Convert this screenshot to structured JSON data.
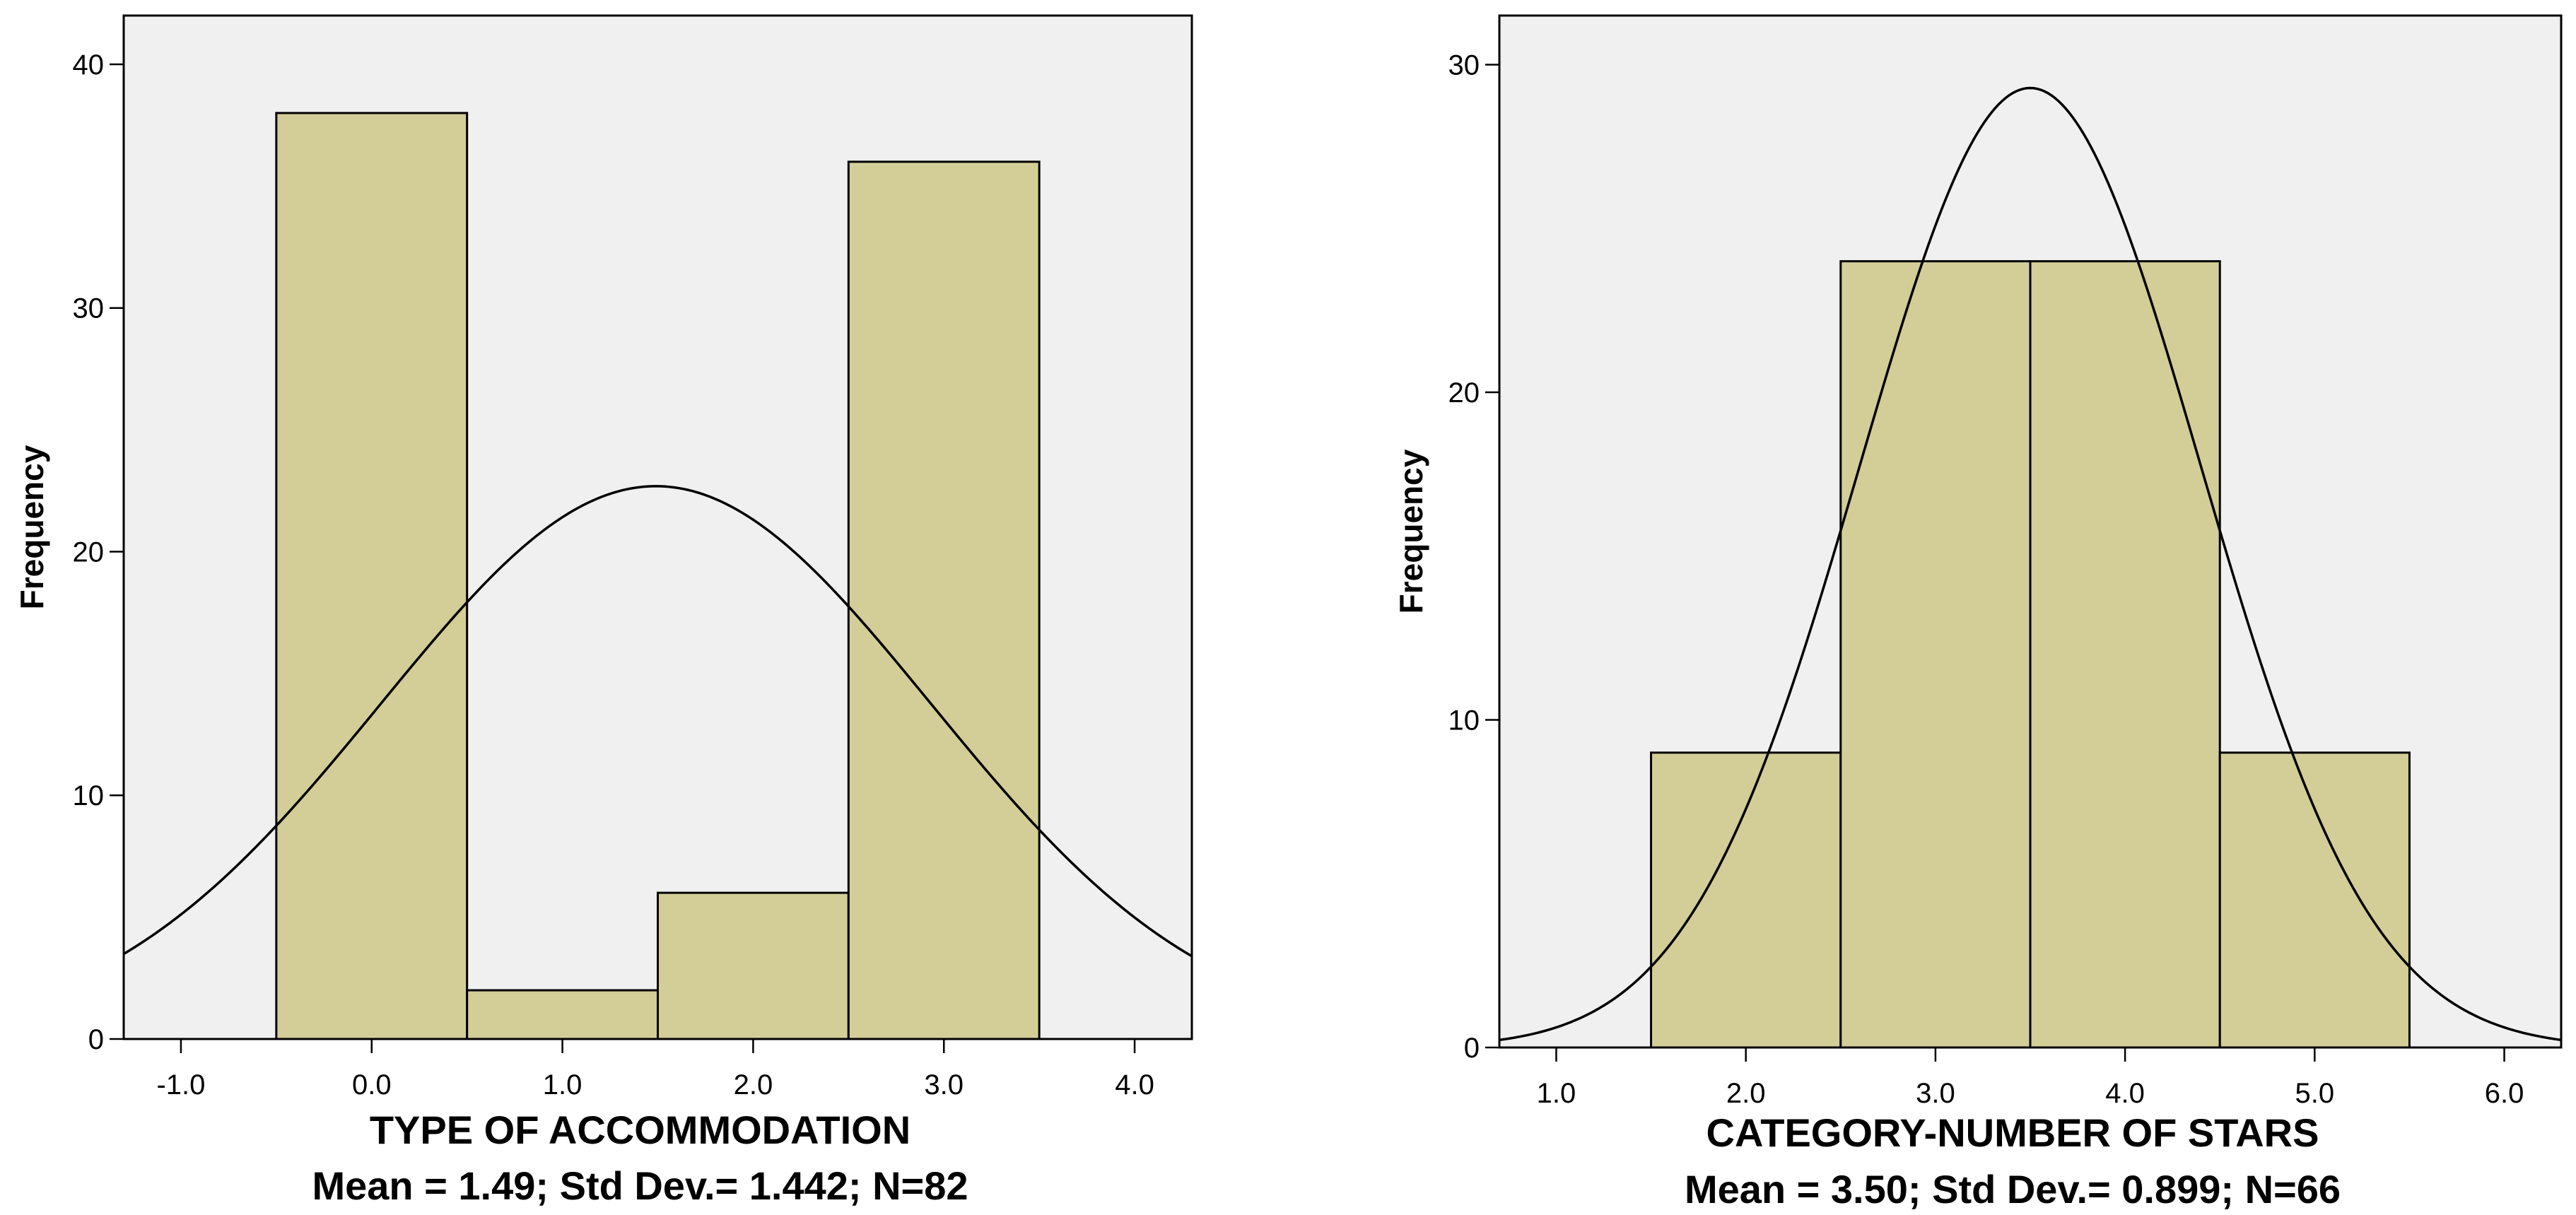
{
  "chart_data": [
    {
      "type": "bar",
      "subtype": "histogram",
      "xlabel": "TYPE OF ACCOMMODATION",
      "ylabel": "Frequency",
      "summary": "Mean = 1.49; Std Dev.= 1.442; N=82",
      "mean": 1.49,
      "std_dev": 1.442,
      "n": 82,
      "bin_width": 1.0,
      "bin_centers": [
        0.0,
        1.0,
        2.0,
        3.0
      ],
      "values": [
        38,
        2,
        6,
        36
      ],
      "xlim": [
        -1.3,
        4.3
      ],
      "ylim": [
        0,
        42
      ],
      "x_ticks": [
        -1.0,
        0.0,
        1.0,
        2.0,
        3.0,
        4.0
      ],
      "x_tick_labels": [
        "-1.0",
        "0.0",
        "1.0",
        "2.0",
        "3.0",
        "4.0"
      ],
      "y_ticks": [
        0,
        10,
        20,
        30,
        40
      ],
      "y_tick_labels": [
        "0",
        "10",
        "20",
        "30",
        "40"
      ],
      "normal_curve": true
    },
    {
      "type": "bar",
      "subtype": "histogram",
      "xlabel": "CATEGORY-NUMBER OF STARS",
      "ylabel": "Frequency",
      "summary": "Mean = 3.50; Std Dev.= 0.899; N=66",
      "mean": 3.5,
      "std_dev": 0.899,
      "n": 66,
      "bin_width": 1.0,
      "bin_centers": [
        2.0,
        3.0,
        4.0,
        5.0
      ],
      "values": [
        9,
        24,
        24,
        9
      ],
      "xlim": [
        0.7,
        6.3
      ],
      "ylim": [
        0,
        31.5
      ],
      "x_ticks": [
        1.0,
        2.0,
        3.0,
        4.0,
        5.0,
        6.0
      ],
      "x_tick_labels": [
        "1.0",
        "2.0",
        "3.0",
        "4.0",
        "5.0",
        "6.0"
      ],
      "y_ticks": [
        0,
        10,
        20,
        30
      ],
      "y_tick_labels": [
        "0",
        "10",
        "20",
        "30"
      ],
      "normal_curve": true
    }
  ],
  "colors": {
    "bar_fill": "#d3ce97",
    "plot_background": "#f0f0f0",
    "line": "#000000"
  }
}
